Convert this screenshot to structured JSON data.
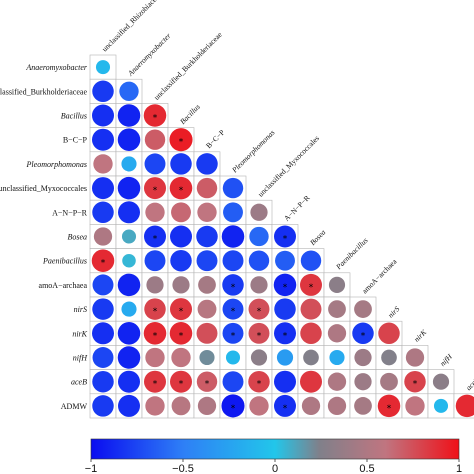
{
  "chart_data": {
    "type": "heatmap",
    "subtype": "lower-triangle correlation matrix (circles sized and colored by correlation, * marks significance)",
    "variables": [
      "Anaeromyxobacter",
      "unclassified_Burkholderiaceae",
      "Bacillus",
      "B-C-P",
      "Pleomorphomonas",
      "unclassified_Myxococcales",
      "A-N-P-R",
      "Bosea",
      "Paenibacillus",
      "amoA-archaea",
      "nirS",
      "nirK",
      "nifH",
      "aceB",
      "ADMW"
    ],
    "row_labels": [
      "Anaeromyxobacter",
      "unclassified_Burkholderiaceae",
      "Bacillus",
      "B−C−P",
      "Pleomorphomonas",
      "unclassified_Myxococcales",
      "A−N−P−R",
      "Bosea",
      "Paenibacillus",
      "amoA−archaea",
      "nirS",
      "nirK",
      "nifH",
      "aceB",
      "ADMW"
    ],
    "column_labels": [
      "unclassified_Rhizobiaceae",
      "Anaeromyxobacter",
      "unclassified_Burkholderiaceae",
      "Bacillus",
      "B−C−P",
      "Pleomorphomonas",
      "unclassified_Myxococcales",
      "A−N−P−R",
      "Bosea",
      "Paenibacillus",
      "amoA−archaea",
      "nirS",
      "nirK",
      "nifH",
      "aceB"
    ],
    "correlations": [
      [
        -0.1
      ],
      [
        -0.8,
        -0.6
      ],
      [
        -0.85,
        -0.9,
        0.9
      ],
      [
        -0.85,
        -0.9,
        0.7,
        0.95
      ],
      [
        0.6,
        -0.2,
        -0.75,
        -0.8,
        -0.8
      ],
      [
        -0.85,
        -0.9,
        0.85,
        0.9,
        0.7,
        -0.7
      ],
      [
        -0.8,
        -0.85,
        0.6,
        0.65,
        0.6,
        -0.65,
        0.4
      ],
      [
        0.5,
        0.1,
        -0.85,
        -0.85,
        -0.8,
        -0.9,
        -0.6,
        -0.85
      ],
      [
        0.9,
        0.05,
        -0.75,
        -0.8,
        -0.75,
        -0.75,
        -0.7,
        -0.65,
        -0.7
      ],
      [
        -0.75,
        -0.9,
        0.4,
        0.4,
        0.45,
        -0.8,
        0.4,
        -0.9,
        0.85,
        0.3
      ],
      [
        -0.8,
        -0.2,
        0.8,
        0.85,
        0.55,
        -0.75,
        0.75,
        -0.8,
        0.75,
        0.45,
        0.45
      ],
      [
        -0.85,
        -0.9,
        0.9,
        0.9,
        0.75,
        -0.75,
        0.75,
        -0.85,
        0.8,
        0.5,
        -0.8,
        0.8
      ],
      [
        -0.75,
        -0.9,
        0.6,
        0.6,
        0.2,
        -0.1,
        0.3,
        -0.3,
        0.25,
        -0.2,
        0.4,
        0.25,
        0.5
      ],
      [
        -0.8,
        -0.85,
        0.85,
        0.85,
        0.7,
        -0.75,
        0.8,
        -0.85,
        0.85,
        0.5,
        0.4,
        0.45,
        0.8,
        0.3
      ],
      [
        -0.8,
        -0.85,
        0.6,
        0.55,
        0.5,
        -0.95,
        0.6,
        -0.85,
        0.5,
        0.5,
        0.45,
        0.9,
        0.6,
        -0.1,
        0.9
      ]
    ],
    "significance": [
      [
        0
      ],
      [
        0,
        0
      ],
      [
        0,
        0,
        1
      ],
      [
        0,
        0,
        0,
        1
      ],
      [
        0,
        0,
        0,
        0,
        0
      ],
      [
        0,
        0,
        1,
        1,
        0,
        0
      ],
      [
        0,
        0,
        0,
        0,
        0,
        0,
        0
      ],
      [
        0,
        0,
        1,
        0,
        0,
        0,
        0,
        1
      ],
      [
        1,
        0,
        0,
        0,
        0,
        0,
        0,
        0,
        0
      ],
      [
        0,
        0,
        0,
        0,
        0,
        1,
        0,
        1,
        1,
        0
      ],
      [
        0,
        0,
        1,
        1,
        0,
        1,
        1,
        0,
        0,
        0,
        0
      ],
      [
        0,
        0,
        1,
        1,
        0,
        1,
        1,
        1,
        0,
        0,
        1,
        0
      ],
      [
        0,
        0,
        0,
        0,
        0,
        0,
        0,
        0,
        0,
        0,
        0,
        0,
        0
      ],
      [
        0,
        0,
        1,
        1,
        1,
        0,
        1,
        0,
        0,
        0,
        0,
        0,
        1,
        0
      ],
      [
        0,
        0,
        0,
        0,
        0,
        1,
        0,
        1,
        0,
        0,
        0,
        1,
        0,
        0,
        0
      ]
    ],
    "colorbar": {
      "ticks": [
        -1,
        -0.5,
        0,
        0.5,
        1
      ],
      "tick_labels": [
        "−1",
        "−0.5",
        "0",
        "0.5",
        "1"
      ],
      "colors": [
        "#0a0cf0",
        "#2e7ff6",
        "#22c6ea",
        "#80808a",
        "#c07580",
        "#f01018"
      ]
    },
    "marker": "*",
    "grid": true,
    "legend": "bottom"
  }
}
